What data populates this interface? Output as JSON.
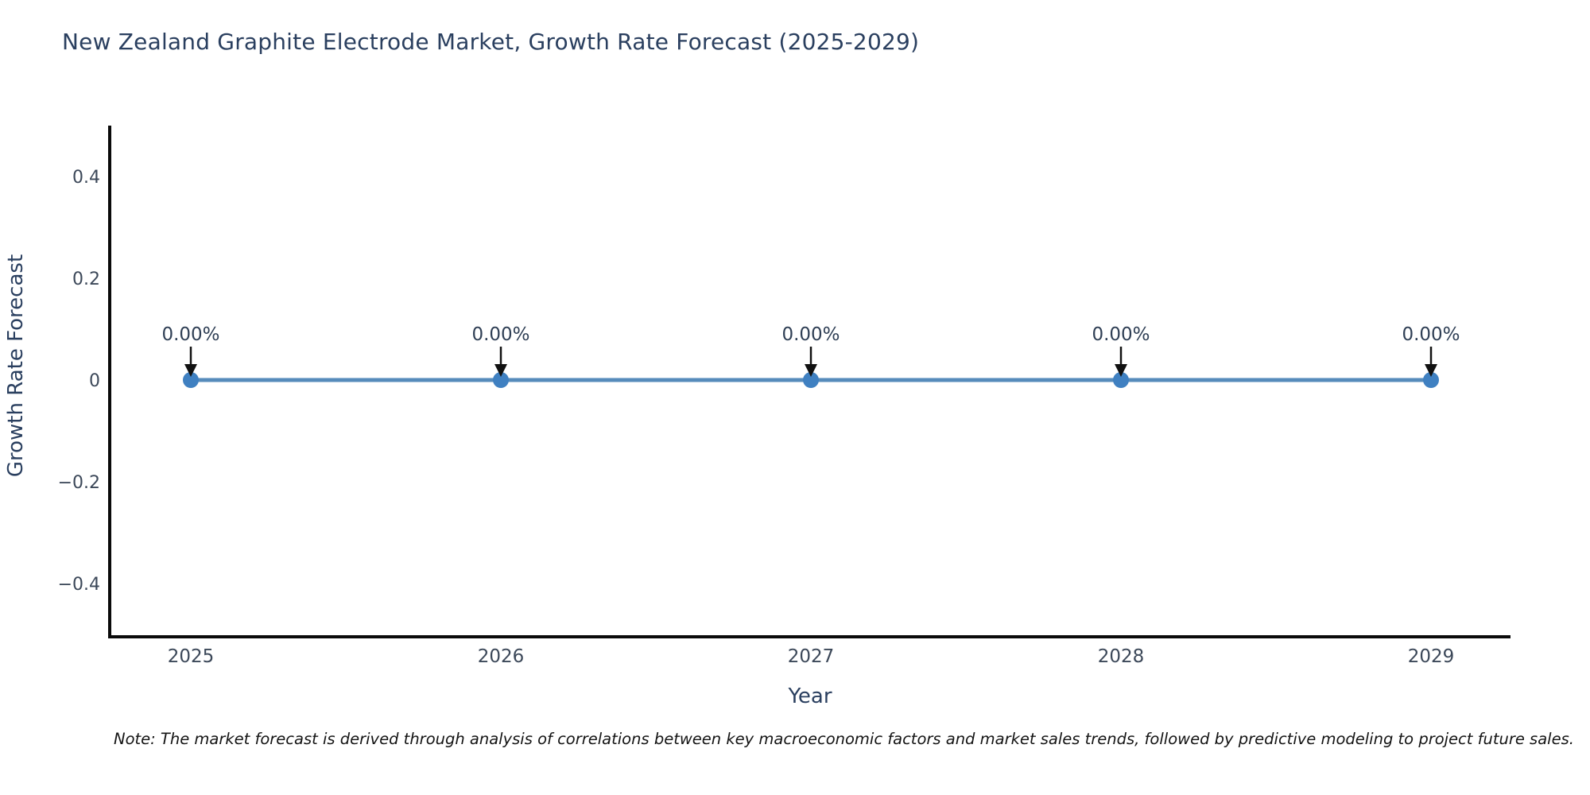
{
  "note": "Note: The market forecast is derived through analysis of correlations between key macroeconomic factors and market sales trends, followed by predictive modeling to project future sales.",
  "chart_data": {
    "type": "line",
    "title": "New Zealand Graphite Electrode Market, Growth Rate Forecast (2025-2029)",
    "xlabel": "Year",
    "ylabel": "Growth Rate Forecast",
    "x": [
      2025,
      2026,
      2027,
      2028,
      2029
    ],
    "series": [
      {
        "name": "Growth Rate Forecast",
        "values": [
          0,
          0,
          0,
          0,
          0
        ]
      }
    ],
    "point_labels": [
      "0.00%",
      "0.00%",
      "0.00%",
      "0.00%",
      "0.00%"
    ],
    "x_tick_labels": [
      "2025",
      "2026",
      "2027",
      "2028",
      "2029"
    ],
    "y_ticks": [
      0.4,
      0.2,
      0,
      -0.2,
      -0.4
    ],
    "y_tick_labels": [
      "0.4",
      "0.2",
      "0",
      "−0.2",
      "−0.4"
    ],
    "ylim": [
      -0.5,
      0.5
    ],
    "grid": false,
    "legend_position": "none",
    "line_color": "#568bbb",
    "marker_color": "#3f80c1",
    "axis_color": "#0a0a0a",
    "arrow_color": "#111111"
  }
}
